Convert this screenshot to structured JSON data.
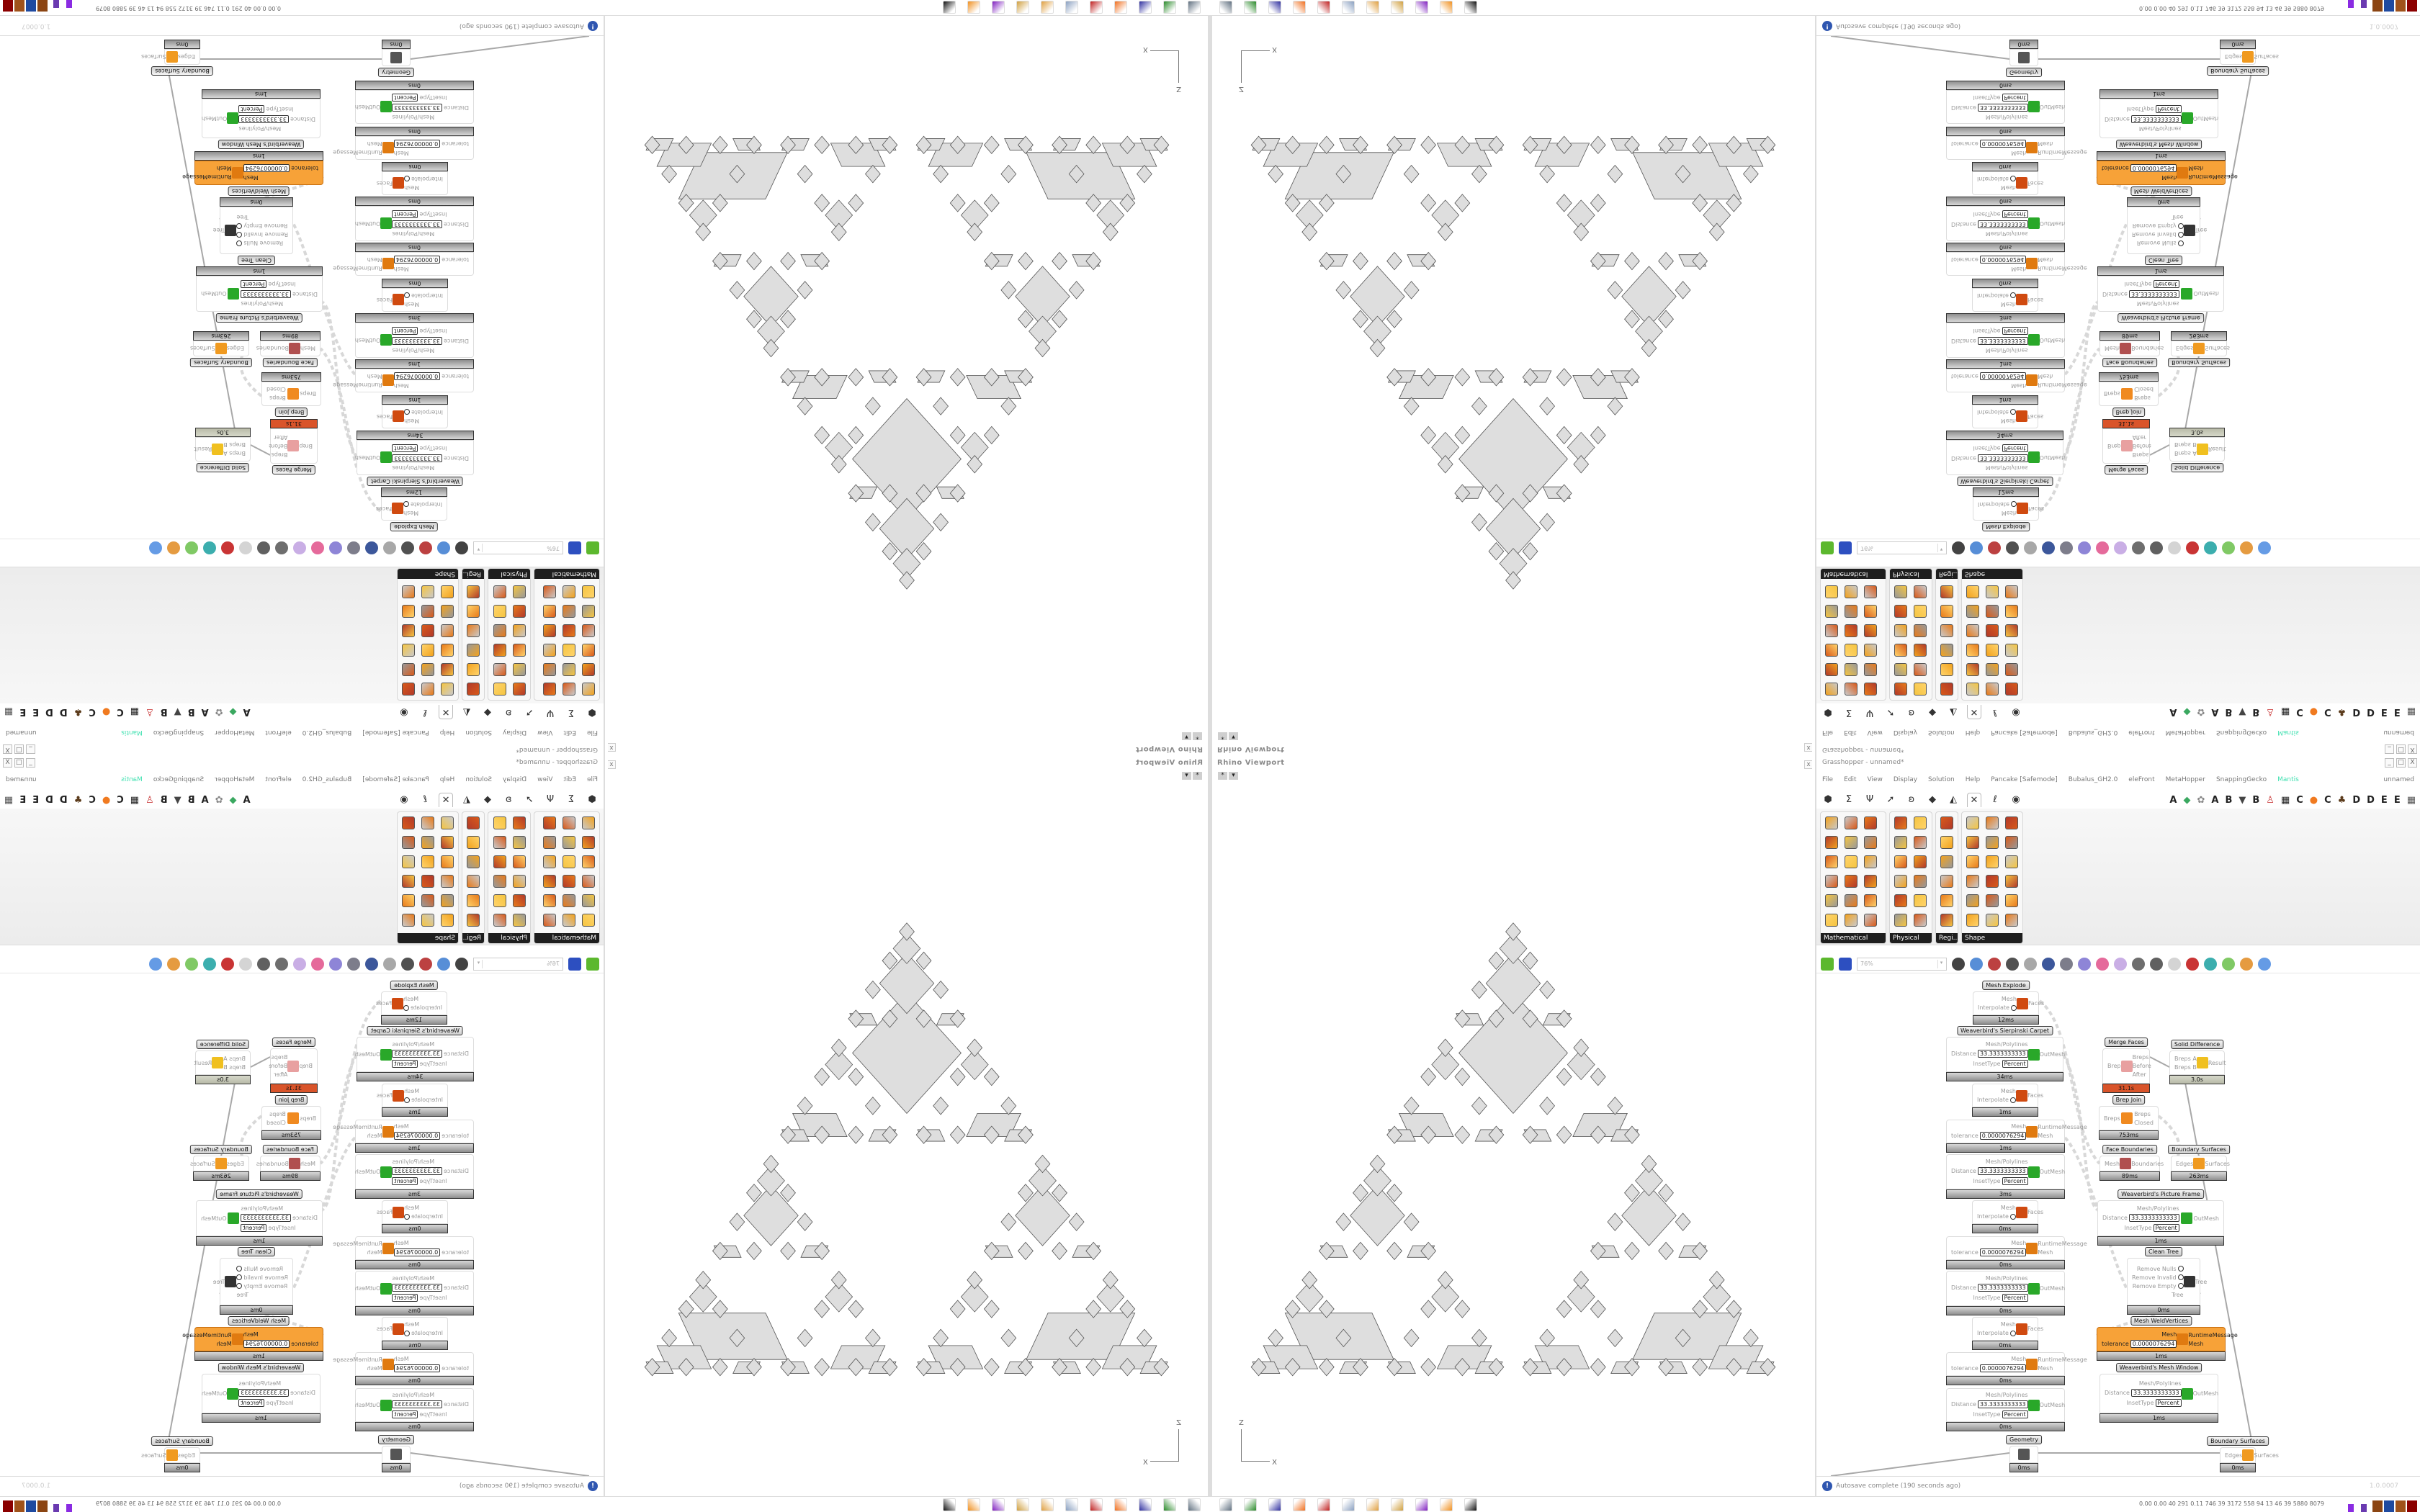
{
  "viewport": {
    "title": "Rhino Viewport",
    "btn_pin": "*",
    "btn_menu": "▾",
    "axis_z": "Z",
    "axis_x": "X",
    "close": "x"
  },
  "grasshopper": {
    "title": "Grasshopper - unnamed*",
    "window_buttons": [
      "_",
      "□",
      "X"
    ],
    "menu": [
      "File",
      "Edit",
      "View",
      "Display",
      "Solution",
      "Help",
      "Pancake [Safemode]",
      "Bubalus_GH2.0",
      "eleFront",
      "MetaHopper",
      "SnappingGecko",
      "Mantis"
    ],
    "menu_highlight_color": "#3fe0b0",
    "document_name": "unnamed",
    "tabs": [
      {
        "icon": "params-hexagon",
        "glyph": "⬢"
      },
      {
        "icon": "maths-sigma",
        "glyph": "Σ"
      },
      {
        "icon": "sets-plant",
        "glyph": "Ψ"
      },
      {
        "icon": "vector-arrow",
        "glyph": "➚"
      },
      {
        "icon": "curve",
        "glyph": "ʚ"
      },
      {
        "icon": "surface",
        "glyph": "◆"
      },
      {
        "icon": "mesh",
        "glyph": "◭"
      },
      {
        "icon": "intersect",
        "glyph": "✕",
        "active": true
      },
      {
        "icon": "transform",
        "glyph": "ℓ"
      },
      {
        "icon": "display-eye",
        "glyph": "◉"
      }
    ],
    "plugin_tabs": [
      "A",
      "◆",
      "✿",
      "A",
      "B",
      "▼",
      "B",
      "♙",
      "▦",
      "C",
      "●",
      "C",
      "♣",
      "D",
      "D",
      "E",
      "E",
      "▦"
    ],
    "panels": [
      {
        "label": "Mathematical",
        "cols": 3
      },
      {
        "label": "Physical",
        "cols": 2
      },
      {
        "label": "Regi...",
        "cols": 1
      },
      {
        "label": "Shape",
        "cols": 3
      }
    ],
    "zoom": "76%",
    "status": "Autosave complete (190 seconds ago)",
    "version": "1.0.0007",
    "canvas": {
      "nodes": [
        {
          "label": "Mesh Explode",
          "icon": "mesh-explode",
          "in": [
            {
              "n": "Mesh"
            },
            {
              "n": "Interpolate",
              "toggle": true
            }
          ],
          "out": [
            "Faces"
          ],
          "time": "12ms"
        },
        {
          "label": "Weaverbird's Sierpinski Carpet",
          "icon": "wb-inset",
          "in": [
            {
              "n": "Mesh/Polylines"
            },
            {
              "n": "Distance",
              "v": "33.3333333333"
            },
            {
              "n": "InsetType",
              "v": "Percent"
            }
          ],
          "out": [
            "OutMesh"
          ],
          "time": "34ms"
        },
        {
          "label": "",
          "icon": "mesh-explode",
          "in": [
            {
              "n": "Mesh"
            },
            {
              "n": "Interpolate",
              "toggle": true
            }
          ],
          "out": [
            "Faces"
          ],
          "time": "1ms"
        },
        {
          "label": "",
          "icon": "weld",
          "in": [
            {
              "n": "Mesh"
            },
            {
              "n": "tolerance",
              "v": "0.0000076294"
            }
          ],
          "out": [
            "RuntimeMessage",
            "Mesh"
          ],
          "time": "1ms"
        },
        {
          "label": "",
          "icon": "wb-inset",
          "in": [
            {
              "n": "Mesh/Polylines"
            },
            {
              "n": "Distance",
              "v": "33.3333333333"
            },
            {
              "n": "InsetType",
              "v": "Percent"
            }
          ],
          "out": [
            "OutMesh"
          ],
          "time": "3ms"
        },
        {
          "label": "",
          "icon": "mesh-explode",
          "in": [
            {
              "n": "Mesh"
            },
            {
              "n": "Interpolate",
              "toggle": true
            }
          ],
          "out": [
            "Faces"
          ],
          "time": "0ms"
        },
        {
          "label": "",
          "icon": "weld",
          "in": [
            {
              "n": "Mesh"
            },
            {
              "n": "tolerance",
              "v": "0.0000076294"
            }
          ],
          "out": [
            "RuntimeMessage",
            "Mesh"
          ],
          "time": "0ms"
        },
        {
          "label": "",
          "icon": "wb-inset",
          "in": [
            {
              "n": "Mesh/Polylines"
            },
            {
              "n": "Distance",
              "v": "33.3333333333"
            },
            {
              "n": "InsetType",
              "v": "Percent"
            }
          ],
          "out": [
            "OutMesh"
          ],
          "time": "0ms"
        },
        {
          "label": "",
          "icon": "mesh-explode",
          "in": [
            {
              "n": "Mesh"
            },
            {
              "n": "Interpolate",
              "toggle": true
            }
          ],
          "out": [
            "Faces"
          ],
          "time": "0ms"
        },
        {
          "label": "",
          "icon": "weld",
          "in": [
            {
              "n": "Mesh"
            },
            {
              "n": "tolerance",
              "v": "0.0000076294"
            }
          ],
          "out": [
            "RuntimeMessage",
            "Mesh"
          ],
          "time": "0ms"
        },
        {
          "label": "",
          "icon": "wb-inset",
          "in": [
            {
              "n": "Mesh/Polylines"
            },
            {
              "n": "Distance",
              "v": "33.3333333333"
            },
            {
              "n": "InsetType",
              "v": "Percent"
            }
          ],
          "out": [
            "OutMesh"
          ],
          "time": "0ms"
        },
        {
          "label": "Geometry",
          "icon": "geometry",
          "in": [],
          "out": [],
          "time": "0ms"
        },
        {
          "label": "Merge Faces",
          "icon": "merge-faces",
          "in": [
            {
              "n": "Brep"
            }
          ],
          "out": [
            "Breps",
            "Before",
            "After"
          ],
          "time": "31.1s",
          "state": "hot"
        },
        {
          "label": "Solid Difference",
          "icon": "solid-difference",
          "in": [
            {
              "n": "Breps A"
            },
            {
              "n": "Breps B"
            }
          ],
          "out": [
            "Result"
          ],
          "time": "3.0s",
          "state": "solid"
        },
        {
          "label": "Brep Join",
          "icon": "brep-join",
          "in": [
            {
              "n": "Breps"
            }
          ],
          "out": [
            "Breps",
            "Closed"
          ],
          "time": "753ms"
        },
        {
          "label": "Face Boundaries",
          "icon": "face-boundaries",
          "in": [
            {
              "n": "Mesh"
            }
          ],
          "out": [
            "Boundaries"
          ],
          "time": "89ms"
        },
        {
          "label": "Boundary Surfaces",
          "icon": "boundary-surfaces",
          "in": [
            {
              "n": "Edges"
            }
          ],
          "out": [
            "Surfaces"
          ],
          "time": "263ms"
        },
        {
          "label": "Weaverbird's Picture Frame",
          "icon": "wb-inset",
          "in": [
            {
              "n": "Mesh/Polylines"
            },
            {
              "n": "Distance",
              "v": "33.3333333333"
            },
            {
              "n": "InsetType",
              "v": "Percent"
            }
          ],
          "out": [
            "OutMesh"
          ],
          "time": "1ms"
        },
        {
          "label": "Clean Tree",
          "icon": "clean-tree",
          "in": [
            {
              "n": "Remove Nulls",
              "toggle": true
            },
            {
              "n": "Remove Invalid",
              "toggle": true
            },
            {
              "n": "Remove Empty",
              "toggle": true
            },
            {
              "n": "Tree"
            }
          ],
          "out": [
            "Tree"
          ],
          "time": "0ms"
        },
        {
          "label": "Mesh WeldVertices",
          "icon": "weld",
          "in": [
            {
              "n": "Mesh"
            },
            {
              "n": "tolerance",
              "v": "0.0000076294"
            }
          ],
          "out": [
            "RuntimeMessage",
            "Mesh"
          ],
          "time": "1ms",
          "state": "selected"
        },
        {
          "label": "Weaverbird's Mesh Window",
          "icon": "wb-inset",
          "in": [
            {
              "n": "Mesh/Polylines"
            },
            {
              "n": "Distance",
              "v": "33.3333333333"
            },
            {
              "n": "InsetType",
              "v": "Percent"
            }
          ],
          "out": [
            "OutMesh"
          ],
          "time": "1ms"
        },
        {
          "label": "Boundary Surfaces",
          "icon": "boundary-surfaces",
          "in": [
            {
              "n": "Edges"
            }
          ],
          "out": [
            "Surfaces"
          ],
          "time": "0ms"
        }
      ]
    }
  },
  "taskbar": {
    "apps": [
      "network-monitor",
      "terminal",
      "floppy-64",
      "firefox",
      "settings-red",
      "calculator",
      "paint-1",
      "paint-2",
      "emote-purple",
      "blender",
      "inkscape"
    ],
    "stats": "0.00 0.00  40  291  0.11  746  39  3172  558  94  13  46  39  5880 8079"
  }
}
